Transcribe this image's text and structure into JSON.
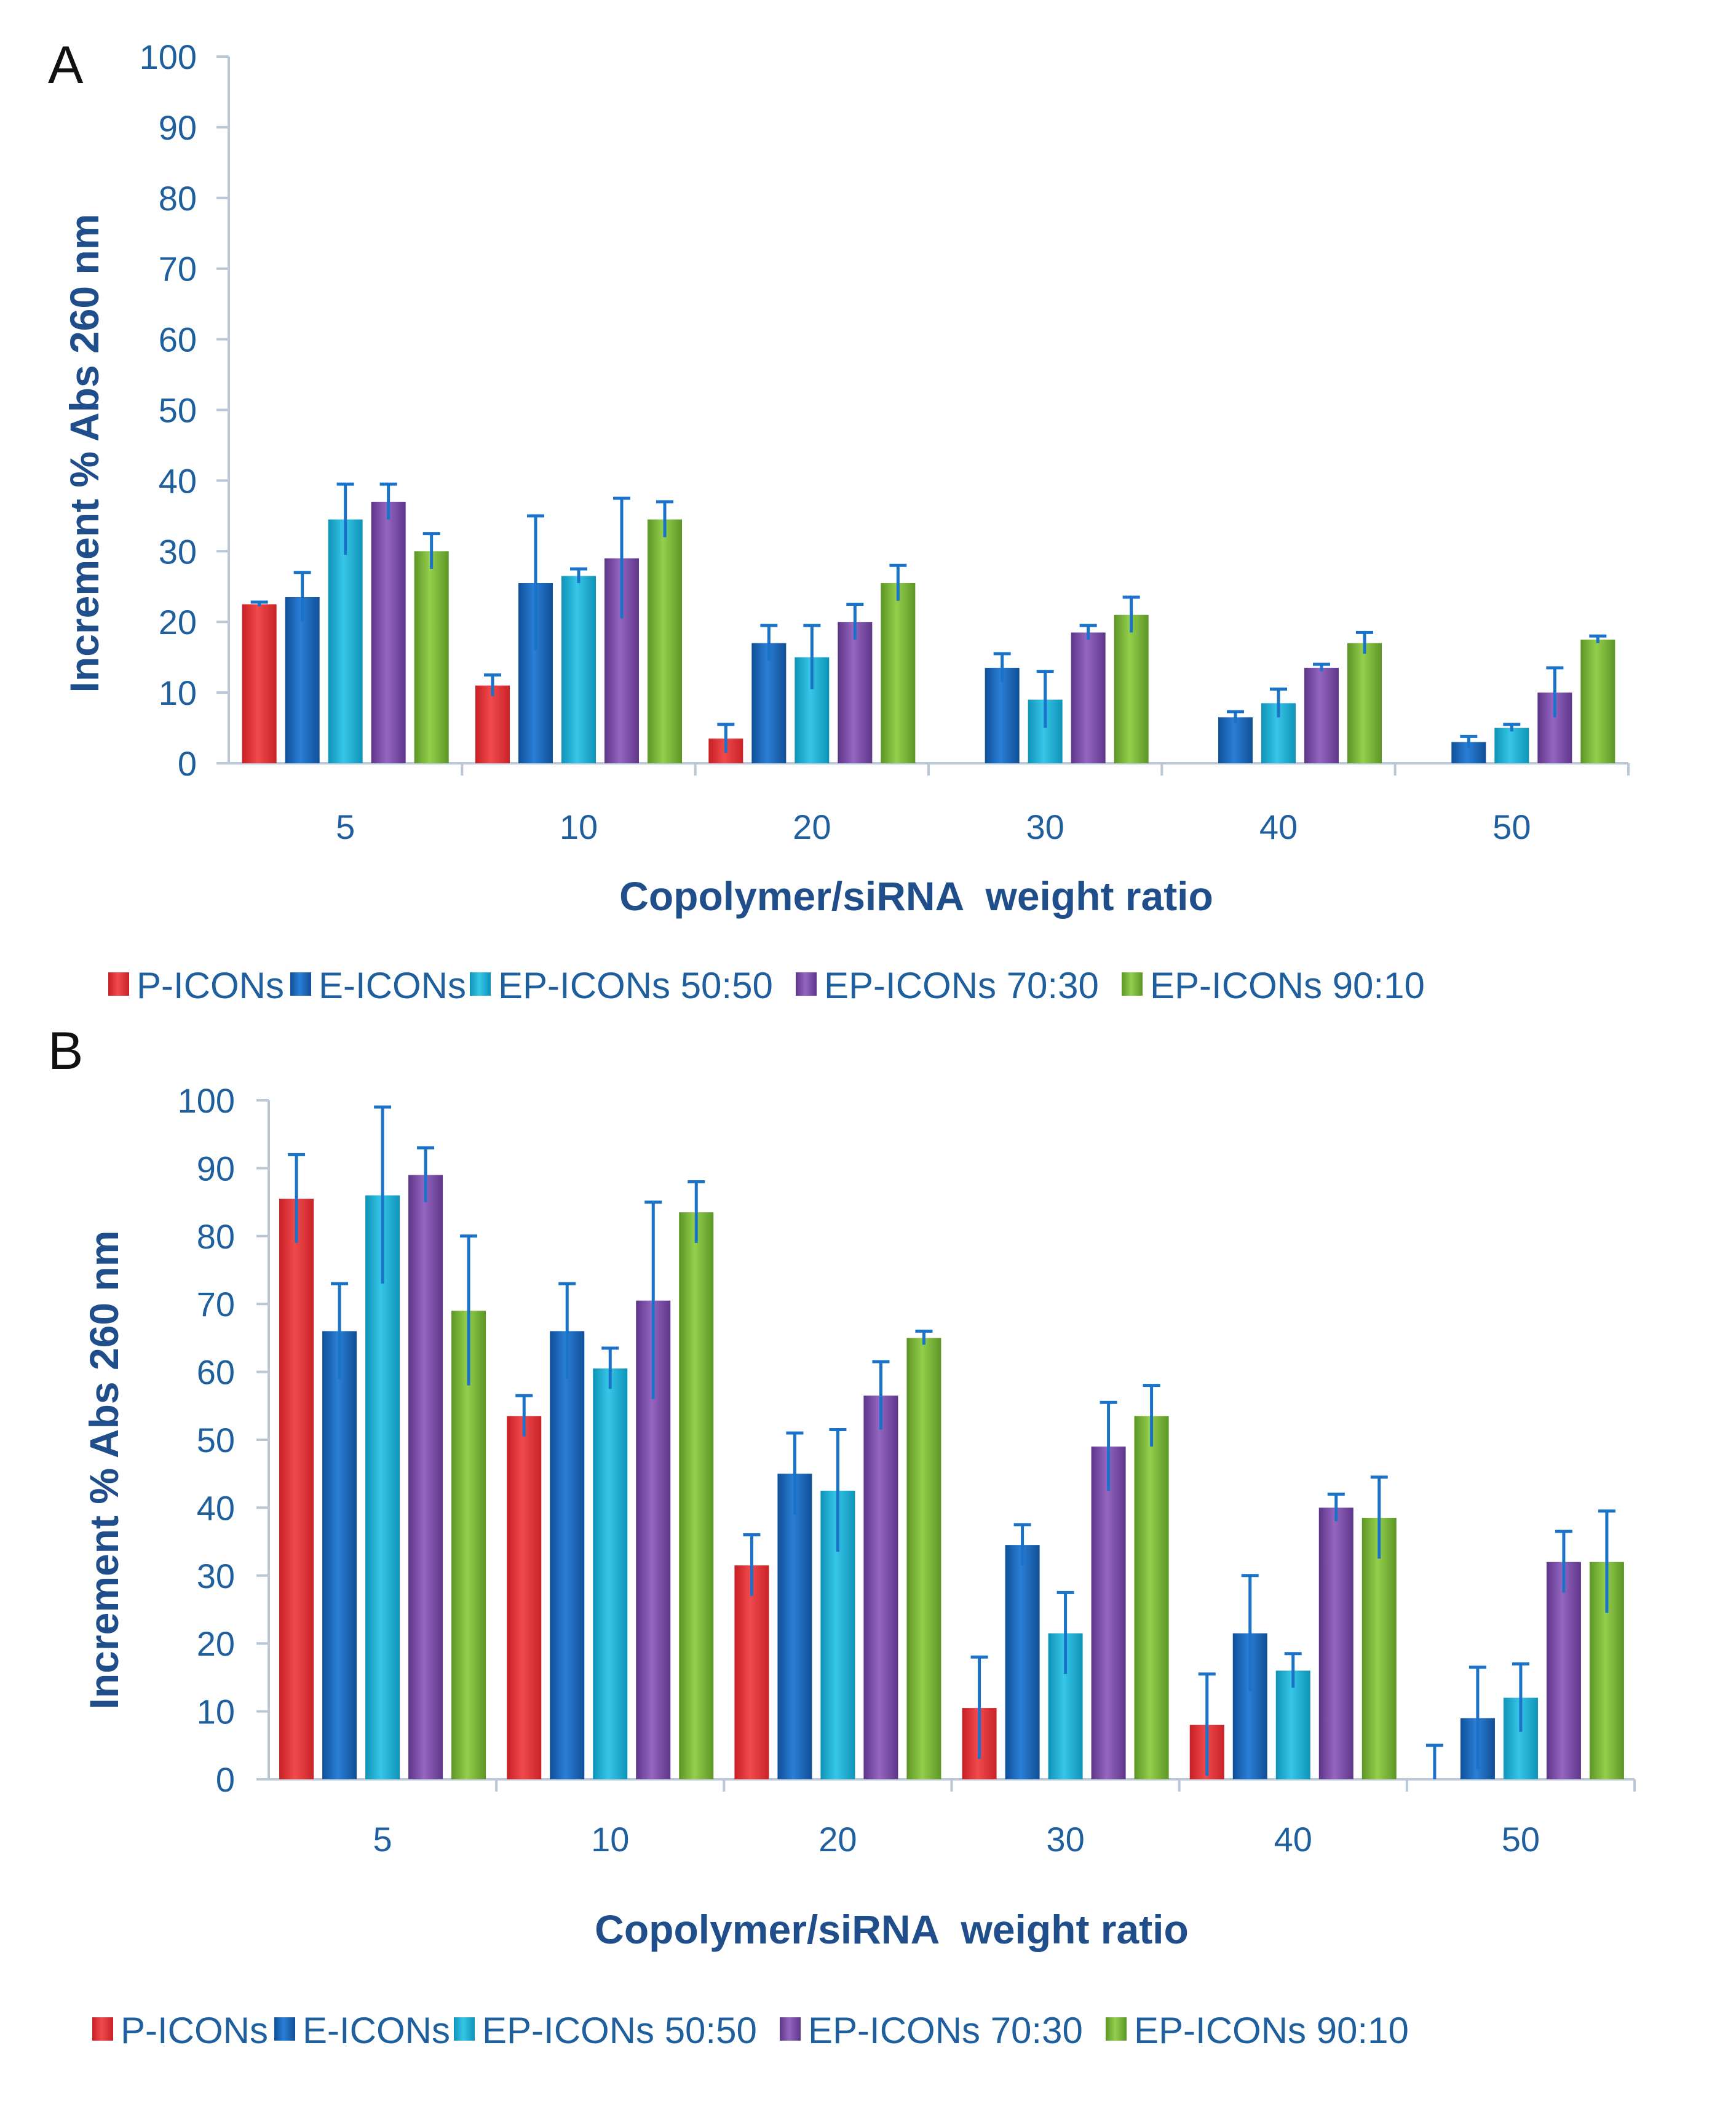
{
  "chart_data": [
    {
      "panel": "A",
      "type": "bar",
      "xlabel": "Copolymer/siRNA  weight ratio",
      "ylabel": "Increment % Abs 260 nm",
      "ylim": [
        0,
        100
      ],
      "yticks": [
        "0",
        "10",
        "20",
        "30",
        "40",
        "50",
        "60",
        "70",
        "80",
        "90",
        "100"
      ],
      "categories": [
        "5",
        "10",
        "20",
        "30",
        "40",
        "50"
      ],
      "legend_position": "bottom",
      "series": [
        {
          "name": "P-ICONs",
          "color": "#e8383b",
          "values": [
            22.5,
            11,
            3.5,
            0,
            0,
            0
          ],
          "errors": [
            0.3,
            1.5,
            2,
            0,
            0,
            0
          ]
        },
        {
          "name": "E-ICONs",
          "color": "#1a6cc4",
          "values": [
            23.5,
            25.5,
            17,
            13.5,
            6.5,
            3
          ],
          "errors": [
            3.5,
            9.5,
            2.5,
            2,
            0.8,
            0.8
          ]
        },
        {
          "name": "EP-ICONs 50:50",
          "color": "#1fb3d8",
          "values": [
            34.5,
            26.5,
            15,
            9,
            8.5,
            5
          ],
          "errors": [
            5,
            1,
            4.5,
            4,
            2,
            0.5
          ]
        },
        {
          "name": "EP-ICONs 70:30",
          "color": "#7d4ea8",
          "values": [
            37,
            29,
            20,
            18.5,
            13.5,
            10
          ],
          "errors": [
            2.5,
            8.5,
            2.5,
            1,
            0.5,
            3.5
          ]
        },
        {
          "name": "EP-ICONs 90:10",
          "color": "#7ab837",
          "values": [
            30,
            34.5,
            25.5,
            21,
            17,
            17.5
          ],
          "errors": [
            2.5,
            2.5,
            2.5,
            2.5,
            1.5,
            0.5
          ]
        }
      ]
    },
    {
      "panel": "B",
      "type": "bar",
      "xlabel": "Copolymer/siRNA  weight ratio",
      "ylabel": "Increment % Abs 260 nm",
      "ylim": [
        0,
        100
      ],
      "yticks": [
        "0",
        "10",
        "20",
        "30",
        "40",
        "50",
        "60",
        "70",
        "80",
        "90",
        "100"
      ],
      "categories": [
        "5",
        "10",
        "20",
        "30",
        "40",
        "50"
      ],
      "legend_position": "bottom",
      "series": [
        {
          "name": "P-ICONs",
          "color": "#e8383b",
          "values": [
            85.5,
            53.5,
            31.5,
            10.5,
            8,
            0
          ],
          "errors": [
            6.5,
            3,
            4.5,
            7.5,
            7.5,
            5
          ]
        },
        {
          "name": "E-ICONs",
          "color": "#1a6cc4",
          "values": [
            66,
            66,
            45,
            34.5,
            21.5,
            9
          ],
          "errors": [
            7,
            7,
            6,
            3,
            8.5,
            7.5
          ]
        },
        {
          "name": "EP-ICONs 50:50",
          "color": "#1fb3d8",
          "values": [
            86,
            60.5,
            42.5,
            21.5,
            16,
            12
          ],
          "errors": [
            13,
            3,
            9,
            6,
            2.5,
            5
          ]
        },
        {
          "name": "EP-ICONs 70:30",
          "color": "#7d4ea8",
          "values": [
            89,
            70.5,
            56.5,
            49,
            40,
            32
          ],
          "errors": [
            4,
            14.5,
            5,
            6.5,
            2,
            4.5
          ]
        },
        {
          "name": "EP-ICONs 90:10",
          "color": "#7ab837",
          "values": [
            69,
            83.5,
            65,
            53.5,
            38.5,
            32
          ],
          "errors": [
            11,
            4.5,
            1,
            4.5,
            6,
            7.5
          ]
        }
      ]
    }
  ]
}
